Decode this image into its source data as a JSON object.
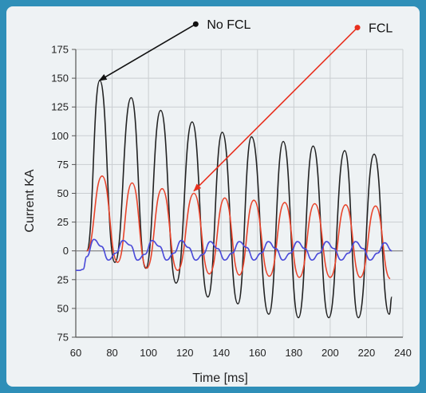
{
  "chart_data": {
    "type": "line",
    "xlabel": "Time [ms]",
    "ylabel": "Current KA",
    "xlim": [
      60,
      240
    ],
    "ylim": [
      -75,
      175
    ],
    "x_ticks": [
      60,
      80,
      100,
      120,
      140,
      160,
      180,
      200,
      220,
      240
    ],
    "y_ticks": [
      175,
      150,
      125,
      100,
      75,
      50,
      25,
      0,
      -25,
      -50,
      -75
    ],
    "y_tick_labels": [
      "175",
      "150",
      "125",
      "100",
      "75",
      "50",
      "25",
      "0",
      "25",
      "50",
      "75"
    ],
    "grid": true,
    "annotations": [
      {
        "text": "No FCL",
        "color": "#111111",
        "from": [
          126,
          197
        ],
        "to": [
          73,
          148
        ]
      },
      {
        "text": "FCL",
        "color": "#e8301e",
        "from": [
          215,
          194
        ],
        "to": [
          125,
          52
        ]
      }
    ],
    "series": [
      {
        "color": "#222222",
        "x": [
          66,
          73.2,
          81.5,
          90.5,
          98.5,
          106.7,
          115.2,
          124,
          132.7,
          140.6,
          149.2,
          156.7,
          166.2,
          174.2,
          182.5,
          190.6,
          199.2,
          208,
          215.5,
          224.2,
          232.5,
          234
        ],
        "y": [
          0,
          148,
          -10,
          133,
          -15,
          122,
          -28,
          112,
          -40,
          103,
          -46,
          99,
          -55,
          95,
          -58,
          91,
          -58,
          87,
          -58,
          84,
          -55,
          -40
        ]
      },
      {
        "color": "#e8432a",
        "x": [
          66,
          74.5,
          83,
          91,
          99,
          107.5,
          116,
          125,
          133.5,
          142,
          150,
          158,
          166.5,
          175,
          183,
          191.5,
          200,
          208.5,
          216.5,
          225,
          233
        ],
        "y": [
          0,
          65,
          -10,
          59,
          -15,
          54,
          -17,
          50,
          -20,
          46,
          -21,
          44,
          -22,
          42,
          -23,
          41,
          -23,
          40,
          -23,
          39,
          -24
        ]
      },
      {
        "color": "#4a4ad8",
        "x": [
          60,
          62,
          64,
          66,
          70,
          74,
          78,
          82,
          86,
          90,
          94,
          98,
          102,
          106,
          110,
          114,
          118,
          122,
          126,
          130,
          134,
          138,
          142,
          146,
          150,
          154,
          158,
          162,
          166,
          170,
          174,
          178,
          182,
          186,
          190,
          194,
          198,
          202,
          206,
          210,
          214,
          218,
          222,
          226,
          230,
          234
        ],
        "y": [
          -17,
          -17,
          -16,
          -5,
          10,
          4,
          -8,
          -2,
          9,
          5,
          -8,
          -3,
          9,
          4,
          -8,
          -2,
          9,
          3,
          -8,
          -3,
          8,
          2,
          -8,
          -2,
          8,
          3,
          -8,
          -2,
          8,
          2,
          -8,
          -2,
          8,
          2,
          -8,
          -2,
          8,
          2,
          -8,
          -2,
          8,
          2,
          -8,
          -2,
          7,
          0
        ]
      }
    ]
  }
}
